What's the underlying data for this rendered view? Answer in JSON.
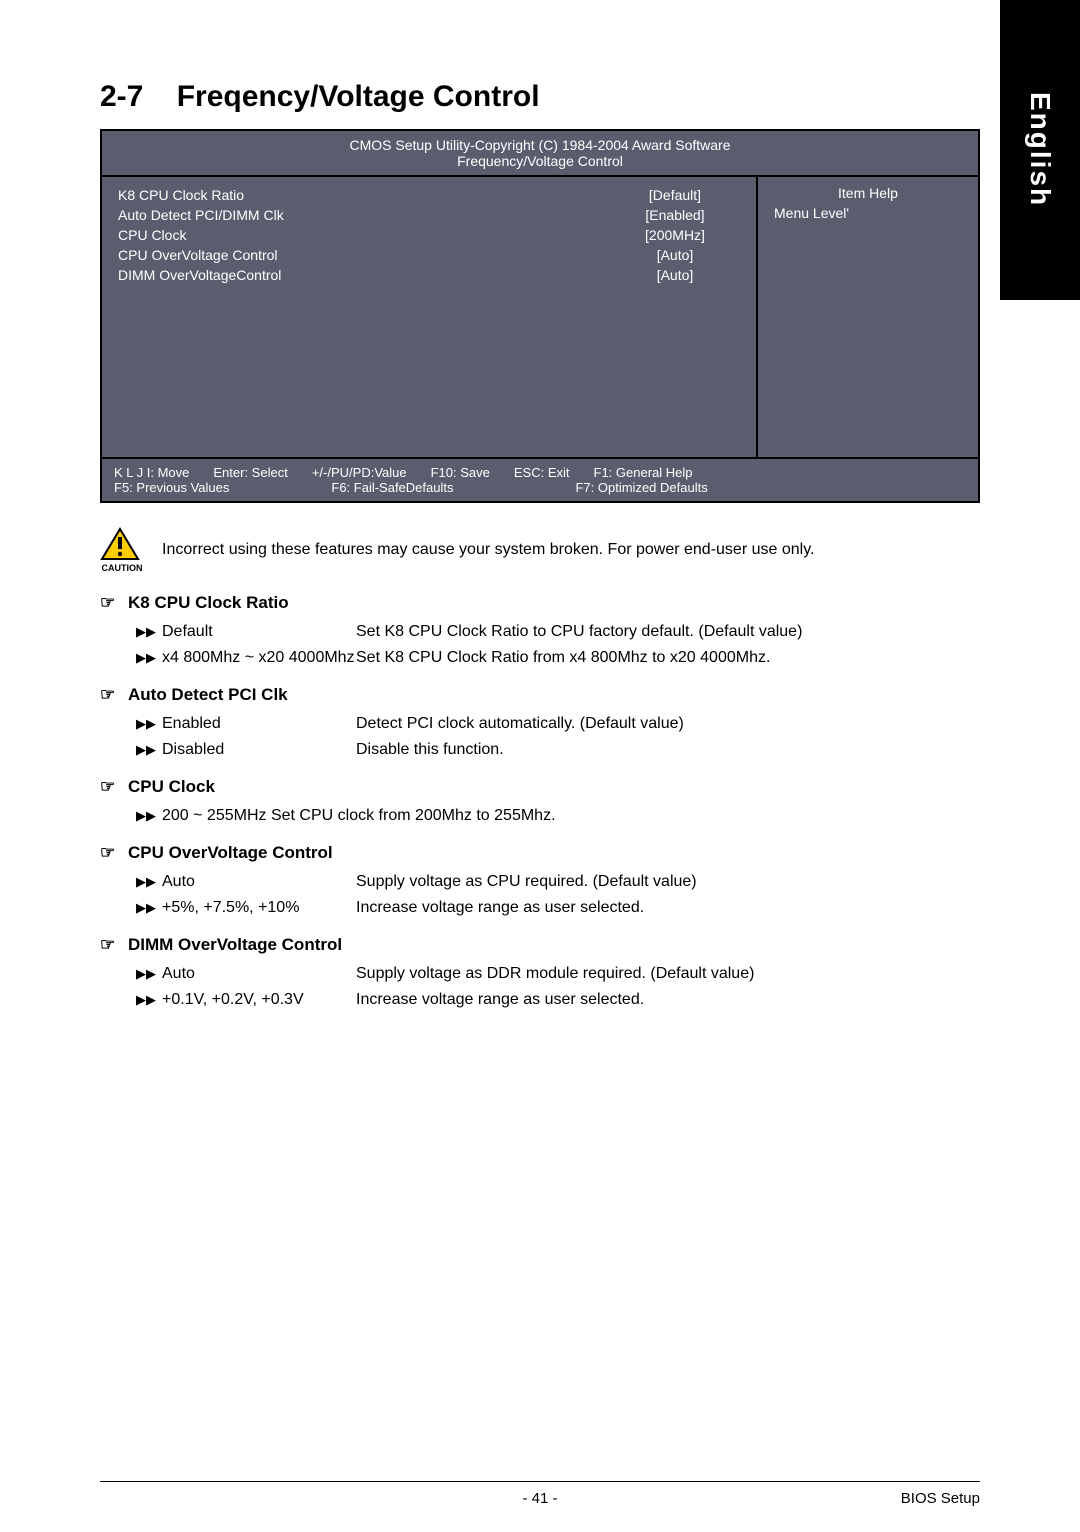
{
  "sideTab": "English",
  "sectionNumber": "2-7",
  "sectionTitle": "Freqency/Voltage Control",
  "bios": {
    "headerLine1": "CMOS Setup Utility-Copyright (C) 1984-2004 Award Software",
    "headerLine2": "Frequency/Voltage Control",
    "items": [
      {
        "label": "K8 CPU Clock Ratio",
        "value": "[Default]"
      },
      {
        "label": "Auto Detect PCI/DIMM Clk",
        "value": "[Enabled]"
      },
      {
        "label": "CPU Clock",
        "value": "[200MHz]"
      },
      {
        "label": "CPU OverVoltage Control",
        "value": "[Auto]"
      },
      {
        "label": "DIMM OverVoltageControl",
        "value": "[Auto]"
      }
    ],
    "helpTitle": "Item Help",
    "helpMenu": "Menu Level'",
    "footer": [
      "K L J I: Move",
      "Enter: Select",
      "+/-/PU/PD:Value",
      "F10: Save",
      "ESC: Exit",
      "F1: General Help",
      "F5: Previous Values",
      "F6: Fail-SafeDefaults",
      "F7: Optimized Defaults"
    ]
  },
  "cautionLabel": "CAUTION",
  "cautionText": "Incorrect using these features may cause your system broken. For power end-user use only.",
  "params": [
    {
      "title": "K8 CPU Clock Ratio",
      "rows": [
        {
          "key": "Default",
          "desc": "Set K8 CPU Clock Ratio to CPU factory default. (Default value)"
        },
        {
          "key": "x4 800Mhz ~ x20 4000Mhz",
          "desc": "Set K8 CPU Clock Ratio from x4 800Mhz to x20 4000Mhz."
        }
      ]
    },
    {
      "title": "Auto Detect PCI Clk",
      "rows": [
        {
          "key": "Enabled",
          "desc": "Detect PCI clock automatically. (Default value)"
        },
        {
          "key": "Disabled",
          "desc": "Disable this function."
        }
      ]
    },
    {
      "title": "CPU Clock",
      "single": "200 ~ 255MHz  Set CPU clock from 200Mhz to 255Mhz."
    },
    {
      "title": "CPU OverVoltage Control",
      "rows": [
        {
          "key": "Auto",
          "desc": "Supply voltage as CPU required. (Default value)"
        },
        {
          "key": "+5%, +7.5%, +10%",
          "desc": "Increase voltage range as user selected."
        }
      ]
    },
    {
      "title": "DIMM OverVoltage Control",
      "rows": [
        {
          "key": "Auto",
          "desc": "Supply voltage as DDR module required. (Default value)"
        },
        {
          "key": "+0.1V, +0.2V, +0.3V",
          "desc": "Increase voltage range as user selected."
        }
      ]
    }
  ],
  "pageNum": "- 41 -",
  "footerRight": "BIOS Setup"
}
